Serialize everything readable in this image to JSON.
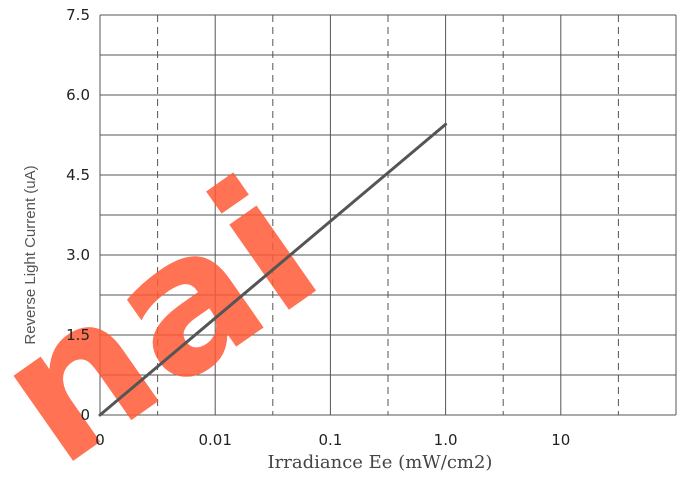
{
  "chart_data": {
    "type": "line",
    "xlabel": "Irradiance Ee (mW/cm2)",
    "ylabel": "Reverse Light Current (uA)",
    "x_tick_labels": [
      "0",
      "0.01",
      "0.1",
      "1.0",
      "10"
    ],
    "y_tick_labels": [
      "0",
      "1.5",
      "3.0",
      "4.5",
      "6.0",
      "7.5"
    ],
    "ylim": [
      0,
      7.5
    ],
    "x_scale": "log",
    "grid": true,
    "series": [
      {
        "points": [
          {
            "x": "0",
            "y": 0
          },
          {
            "x": "1.0",
            "y": 5.45
          }
        ],
        "color": "#555555"
      }
    ]
  },
  "watermark": "nai",
  "watermark_color": "#ff5a36"
}
